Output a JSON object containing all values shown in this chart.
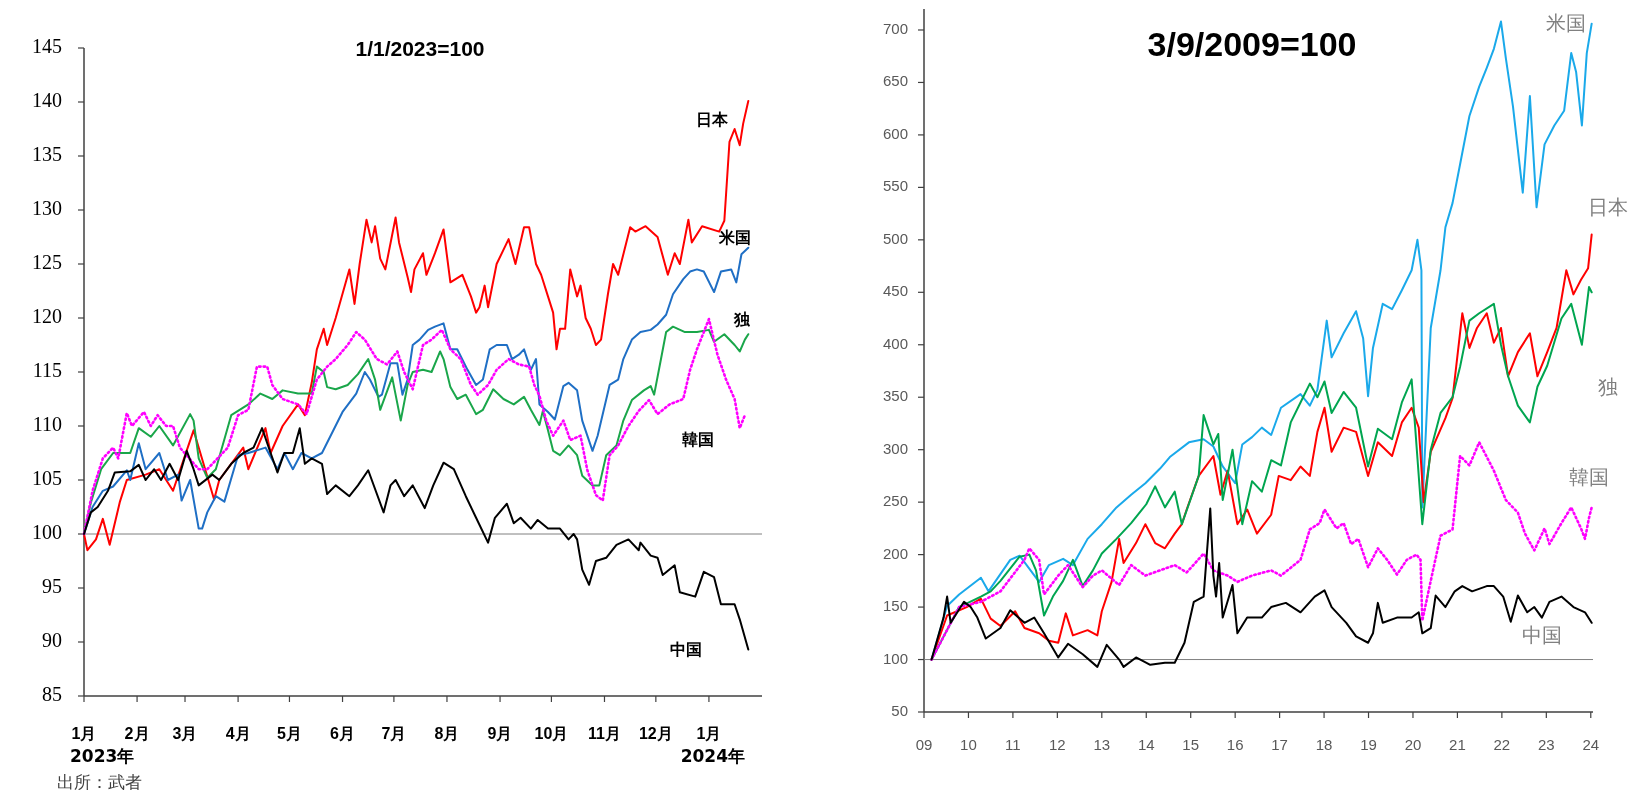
{
  "chart_data": [
    {
      "type": "line",
      "title": "1/1/2023=100",
      "xlim": [
        "2023-01-01",
        "2024-02-01"
      ],
      "ylim": [
        85,
        145
      ],
      "yticks": [
        85,
        90,
        95,
        100,
        105,
        110,
        115,
        120,
        125,
        130,
        135,
        140,
        145
      ],
      "xticks": [
        {
          "value": "2023-01-01",
          "label": "1月"
        },
        {
          "value": "2023-02-01",
          "label": "2月"
        },
        {
          "value": "2023-03-01",
          "label": "3月"
        },
        {
          "value": "2023-04-01",
          "label": "4月"
        },
        {
          "value": "2023-05-01",
          "label": "5月"
        },
        {
          "value": "2023-06-01",
          "label": "6月"
        },
        {
          "value": "2023-07-01",
          "label": "7月"
        },
        {
          "value": "2023-08-01",
          "label": "8月"
        },
        {
          "value": "2023-09-01",
          "label": "9月"
        },
        {
          "value": "2023-10-01",
          "label": "10月"
        },
        {
          "value": "2023-11-01",
          "label": "11月"
        },
        {
          "value": "2023-12-01",
          "label": "12月"
        },
        {
          "value": "2024-01-01",
          "label": "1月"
        }
      ],
      "grid": false,
      "legend": false,
      "ref_lines": [
        {
          "axis": "y",
          "value": 100,
          "color": "#808080"
        }
      ],
      "annotations": [
        "2023年",
        "2024年",
        "出所：武者"
      ],
      "series": [
        {
          "name": "日本",
          "color": "#ff0000",
          "x": [
            "2023-01-01",
            "2023-01-03",
            "2023-01-08",
            "2023-01-12",
            "2023-01-16",
            "2023-01-22",
            "2023-01-26",
            "2023-02-06",
            "2023-02-14",
            "2023-02-22",
            "2023-03-06",
            "2023-03-18",
            "2023-03-21",
            "2023-04-04",
            "2023-04-07",
            "2023-04-17",
            "2023-04-20",
            "2023-04-27",
            "2023-05-06",
            "2023-05-10",
            "2023-05-14",
            "2023-05-17",
            "2023-05-21",
            "2023-05-23",
            "2023-05-28",
            "2023-06-05",
            "2023-06-08",
            "2023-06-11",
            "2023-06-15",
            "2023-06-18",
            "2023-06-20",
            "2023-06-23",
            "2023-06-26",
            "2023-07-02",
            "2023-07-04",
            "2023-07-09",
            "2023-07-11",
            "2023-07-13",
            "2023-07-18",
            "2023-07-20",
            "2023-07-25",
            "2023-07-30",
            "2023-08-03",
            "2023-08-10",
            "2023-08-15",
            "2023-08-18",
            "2023-08-20",
            "2023-08-23",
            "2023-08-25",
            "2023-08-30",
            "2023-09-06",
            "2023-09-10",
            "2023-09-15",
            "2023-09-18",
            "2023-09-22",
            "2023-09-25",
            "2023-09-29",
            "2023-10-02",
            "2023-10-04",
            "2023-10-06",
            "2023-10-09",
            "2023-10-12",
            "2023-10-16",
            "2023-10-18",
            "2023-10-21",
            "2023-10-24",
            "2023-10-27",
            "2023-10-30",
            "2023-11-03",
            "2023-11-06",
            "2023-11-09",
            "2023-11-16",
            "2023-11-19",
            "2023-11-25",
            "2023-12-02",
            "2023-12-08",
            "2023-12-12",
            "2023-12-15",
            "2023-12-20",
            "2023-12-22",
            "2023-12-28",
            "2024-01-07",
            "2024-01-10",
            "2024-01-13",
            "2024-01-16",
            "2024-01-19",
            "2024-01-21",
            "2024-01-24"
          ],
          "values": [
            100,
            98.5,
            99.5,
            101.4,
            99,
            103,
            105,
            105.5,
            106,
            104,
            109.6,
            103.2,
            105,
            108,
            106,
            109.8,
            107.5,
            110,
            112,
            111,
            114,
            117.1,
            119,
            117.5,
            120,
            124.5,
            121.3,
            125,
            129.1,
            127,
            128.5,
            125.5,
            124.5,
            129.3,
            127,
            123.8,
            122.4,
            124.5,
            126,
            124,
            126,
            128.2,
            123.3,
            124,
            122,
            120.5,
            121,
            123,
            121,
            125,
            127.3,
            125,
            128.4,
            128.4,
            125,
            124,
            122,
            120.5,
            117.1,
            119,
            119,
            124.5,
            122,
            123,
            120,
            119,
            117.5,
            118,
            122.2,
            125,
            124,
            128.4,
            128,
            128.5,
            127.5,
            124,
            126,
            125,
            129.1,
            127,
            128.5,
            128,
            129,
            136.3,
            137.5,
            136,
            138,
            140.1
          ]
        },
        {
          "name": "米国",
          "color": "#1f6fc5",
          "x": [
            "2023-01-01",
            "2023-01-06",
            "2023-01-12",
            "2023-01-18",
            "2023-01-26",
            "2023-01-28",
            "2023-02-02",
            "2023-02-06",
            "2023-02-14",
            "2023-02-19",
            "2023-02-25",
            "2023-02-27",
            "2023-03-04",
            "2023-03-09",
            "2023-03-11",
            "2023-03-14",
            "2023-03-19",
            "2023-03-24",
            "2023-04-01",
            "2023-04-07",
            "2023-04-17",
            "2023-04-24",
            "2023-04-28",
            "2023-05-03",
            "2023-05-08",
            "2023-05-14",
            "2023-05-20",
            "2023-06-01",
            "2023-06-09",
            "2023-06-14",
            "2023-06-17",
            "2023-06-22",
            "2023-06-24",
            "2023-06-29",
            "2023-07-03",
            "2023-07-06",
            "2023-07-09",
            "2023-07-12",
            "2023-07-16",
            "2023-07-21",
            "2023-07-25",
            "2023-07-30",
            "2023-08-03",
            "2023-08-07",
            "2023-08-13",
            "2023-08-18",
            "2023-08-22",
            "2023-08-26",
            "2023-08-30",
            "2023-09-05",
            "2023-09-08",
            "2023-09-12",
            "2023-09-15",
            "2023-09-19",
            "2023-09-22",
            "2023-09-24",
            "2023-09-29",
            "2023-10-03",
            "2023-10-08",
            "2023-10-11",
            "2023-10-16",
            "2023-10-19",
            "2023-10-25",
            "2023-10-28",
            "2023-11-04",
            "2023-11-09",
            "2023-11-12",
            "2023-11-17",
            "2023-11-22",
            "2023-11-28",
            "2023-12-02",
            "2023-12-07",
            "2023-12-11",
            "2023-12-17",
            "2023-12-21",
            "2023-12-25",
            "2023-12-29",
            "2024-01-04",
            "2024-01-08",
            "2024-01-14",
            "2024-01-17",
            "2024-01-20",
            "2024-01-24"
          ],
          "values": [
            100,
            102.5,
            104,
            104.4,
            105.9,
            105,
            108.4,
            106,
            107.5,
            105,
            105.5,
            103.1,
            105,
            100.5,
            100.5,
            102,
            103.5,
            103,
            107.3,
            107.5,
            108,
            106,
            107.5,
            106,
            107.5,
            107,
            107.5,
            111.3,
            113,
            115,
            114.3,
            112.7,
            112.9,
            115.8,
            115.8,
            112.9,
            114.3,
            117.5,
            118,
            118.9,
            119.2,
            119.5,
            117.1,
            117.1,
            115.2,
            113.8,
            114.3,
            117.1,
            117.5,
            117.5,
            116.2,
            116.6,
            117.1,
            115.2,
            116.2,
            112,
            111.3,
            110.6,
            113.7,
            114,
            113.3,
            110.5,
            107.7,
            109.1,
            113.8,
            114.3,
            116.2,
            118,
            118.7,
            118.9,
            119.4,
            120.3,
            122.2,
            123.6,
            124.3,
            124.5,
            124.3,
            122.4,
            124.3,
            124.5,
            123.3,
            125.9,
            126.5
          ]
        },
        {
          "name": "独",
          "color": "#1aa64a",
          "x": [
            "2023-01-01",
            "2023-01-05",
            "2023-01-11",
            "2023-01-18",
            "2023-01-28",
            "2023-02-02",
            "2023-02-09",
            "2023-02-14",
            "2023-02-22",
            "2023-03-04",
            "2023-03-06",
            "2023-03-09",
            "2023-03-14",
            "2023-03-19",
            "2023-03-28",
            "2023-04-07",
            "2023-04-14",
            "2023-04-21",
            "2023-04-27",
            "2023-05-06",
            "2023-05-14",
            "2023-05-17",
            "2023-05-21",
            "2023-05-23",
            "2023-05-28",
            "2023-06-04",
            "2023-06-10",
            "2023-06-16",
            "2023-06-20",
            "2023-06-23",
            "2023-06-30",
            "2023-07-05",
            "2023-07-09",
            "2023-07-12",
            "2023-07-18",
            "2023-07-23",
            "2023-07-28",
            "2023-07-30",
            "2023-08-03",
            "2023-08-07",
            "2023-08-12",
            "2023-08-18",
            "2023-08-22",
            "2023-08-28",
            "2023-09-03",
            "2023-09-09",
            "2023-09-15",
            "2023-09-19",
            "2023-09-24",
            "2023-09-26",
            "2023-09-29",
            "2023-10-02",
            "2023-10-06",
            "2023-10-11",
            "2023-10-16",
            "2023-10-19",
            "2023-10-25",
            "2023-10-29",
            "2023-11-02",
            "2023-11-08",
            "2023-11-12",
            "2023-11-17",
            "2023-11-24",
            "2023-11-28",
            "2023-11-30",
            "2023-12-04",
            "2023-12-07",
            "2023-12-11",
            "2023-12-18",
            "2023-12-25",
            "2024-01-01",
            "2024-01-04",
            "2024-01-10",
            "2024-01-16",
            "2024-01-19",
            "2024-01-22",
            "2024-01-24"
          ],
          "values": [
            100,
            102.9,
            106,
            107.5,
            107.5,
            109.8,
            109,
            110,
            108.2,
            111.1,
            110.5,
            107,
            105.2,
            106,
            111,
            112,
            113,
            112.5,
            113.3,
            113,
            113,
            115.5,
            115,
            113.6,
            113.4,
            113.8,
            114.8,
            116.2,
            114.3,
            111.5,
            114.5,
            110.5,
            113.8,
            115,
            115.2,
            115,
            116.9,
            116.2,
            113.6,
            112.5,
            112.9,
            111.1,
            111.5,
            113.4,
            112.5,
            112,
            112.7,
            111.5,
            110.1,
            111.4,
            109.6,
            107.7,
            107.3,
            108.2,
            107.3,
            105.4,
            104.5,
            104.5,
            107.3,
            108.2,
            110.5,
            112.4,
            113.3,
            113.7,
            112.9,
            116.2,
            118.7,
            119.2,
            118.7,
            118.7,
            118.9,
            117.8,
            118.5,
            117.5,
            116.9,
            118,
            118.5
          ]
        },
        {
          "name": "韓国",
          "color": "#ff00ff",
          "line_style": "dotted",
          "x": [
            "2023-01-01",
            "2023-01-06",
            "2023-01-12",
            "2023-01-18",
            "2023-01-21",
            "2023-01-26",
            "2023-01-29",
            "2023-02-05",
            "2023-02-09",
            "2023-02-13",
            "2023-02-18",
            "2023-02-22",
            "2023-02-26",
            "2023-03-09",
            "2023-03-14",
            "2023-03-26",
            "2023-04-01",
            "2023-04-07",
            "2023-04-12",
            "2023-04-18",
            "2023-04-21",
            "2023-04-27",
            "2023-05-06",
            "2023-05-11",
            "2023-05-17",
            "2023-05-23",
            "2023-05-28",
            "2023-06-04",
            "2023-06-09",
            "2023-06-14",
            "2023-06-21",
            "2023-06-27",
            "2023-07-03",
            "2023-07-07",
            "2023-07-12",
            "2023-07-18",
            "2023-07-23",
            "2023-07-29",
            "2023-08-03",
            "2023-08-09",
            "2023-08-15",
            "2023-08-19",
            "2023-08-25",
            "2023-08-30",
            "2023-09-06",
            "2023-09-12",
            "2023-09-18",
            "2023-09-21",
            "2023-09-24",
            "2023-09-28",
            "2023-10-02",
            "2023-10-08",
            "2023-10-12",
            "2023-10-18",
            "2023-10-22",
            "2023-10-27",
            "2023-10-31",
            "2023-11-04",
            "2023-11-09",
            "2023-11-15",
            "2023-11-21",
            "2023-11-27",
            "2023-12-02",
            "2023-12-09",
            "2023-12-17",
            "2023-12-21",
            "2023-12-25",
            "2024-01-01",
            "2024-01-06",
            "2024-01-11",
            "2024-01-16",
            "2024-01-19",
            "2024-01-22"
          ],
          "values": [
            100,
            104,
            107,
            108,
            107,
            111.2,
            110,
            111.3,
            110,
            111,
            110,
            110,
            108,
            106,
            106,
            108,
            111,
            111.5,
            115.5,
            115.5,
            113.8,
            112.5,
            112,
            111.1,
            114.3,
            115.5,
            116.2,
            117.5,
            118.7,
            118,
            116.2,
            115.7,
            116.9,
            115,
            113.4,
            117.5,
            118,
            118.9,
            117.1,
            116.2,
            113.8,
            112.9,
            113.8,
            115.2,
            116.2,
            115.7,
            115.5,
            113.8,
            112.8,
            110.5,
            109.1,
            110.5,
            108.7,
            109.1,
            105.9,
            103.6,
            103.1,
            107.3,
            108.2,
            110,
            111.4,
            112.4,
            111.1,
            112,
            112.5,
            115.2,
            117.1,
            119.9,
            116.6,
            114.3,
            112.5,
            109.8,
            111
          ]
        },
        {
          "name": "中国",
          "color": "#000000",
          "x": [
            "2023-01-01",
            "2023-01-05",
            "2023-01-09",
            "2023-01-15",
            "2023-01-19",
            "2023-01-28",
            "2023-02-02",
            "2023-02-06",
            "2023-02-11",
            "2023-02-15",
            "2023-02-20",
            "2023-02-25",
            "2023-03-02",
            "2023-03-06",
            "2023-03-09",
            "2023-03-17",
            "2023-03-21",
            "2023-03-28",
            "2023-04-04",
            "2023-04-10",
            "2023-04-15",
            "2023-04-20",
            "2023-04-24",
            "2023-04-28",
            "2023-05-03",
            "2023-05-07",
            "2023-05-10",
            "2023-05-14",
            "2023-05-20",
            "2023-05-23",
            "2023-05-28",
            "2023-06-05",
            "2023-06-10",
            "2023-06-16",
            "2023-06-25",
            "2023-06-29",
            "2023-07-02",
            "2023-07-07",
            "2023-07-12",
            "2023-07-19",
            "2023-07-24",
            "2023-07-30",
            "2023-08-05",
            "2023-08-12",
            "2023-08-18",
            "2023-08-25",
            "2023-08-29",
            "2023-09-05",
            "2023-09-09",
            "2023-09-13",
            "2023-09-19",
            "2023-09-23",
            "2023-09-29",
            "2023-10-06",
            "2023-10-11",
            "2023-10-14",
            "2023-10-16",
            "2023-10-19",
            "2023-10-23",
            "2023-10-27",
            "2023-11-02",
            "2023-11-08",
            "2023-11-15",
            "2023-11-21",
            "2023-11-22",
            "2023-11-28",
            "2023-12-02",
            "2023-12-05",
            "2023-12-12",
            "2023-12-15",
            "2023-12-24",
            "2023-12-29",
            "2024-01-04",
            "2024-01-08",
            "2024-01-16",
            "2024-01-19",
            "2024-01-24"
          ],
          "values": [
            100,
            102,
            102.5,
            104,
            105.7,
            105.8,
            106.4,
            105,
            106,
            105,
            106.5,
            105,
            107.7,
            106,
            104.5,
            105.5,
            105,
            106.5,
            107.5,
            108,
            109.8,
            107.5,
            105.7,
            107.5,
            107.5,
            109.8,
            106.5,
            107,
            106.5,
            103.7,
            104.5,
            103.5,
            104.5,
            105.9,
            102,
            104.5,
            105,
            103.5,
            104.5,
            102.4,
            104.5,
            106.6,
            106,
            103.5,
            101.5,
            99.2,
            101.5,
            102.8,
            101,
            101.5,
            100.5,
            101.3,
            100.5,
            100.5,
            99.5,
            100,
            99.5,
            96.7,
            95.3,
            97.5,
            97.8,
            99,
            99.5,
            98.5,
            99.2,
            98,
            97.8,
            96.2,
            97.1,
            94.6,
            94.2,
            96.5,
            96,
            93.5,
            93.5,
            92.1,
            89.3
          ]
        }
      ]
    },
    {
      "type": "line",
      "title": "3/9/2009=100",
      "xlim": [
        2009,
        2024.05
      ],
      "ylim": [
        50,
        720
      ],
      "yticks": [
        50,
        100,
        150,
        200,
        250,
        300,
        350,
        400,
        450,
        500,
        550,
        600,
        650,
        700
      ],
      "xticks": [
        {
          "value": 2009,
          "label": "09"
        },
        {
          "value": 2010,
          "label": "10"
        },
        {
          "value": 2011,
          "label": "11"
        },
        {
          "value": 2012,
          "label": "12"
        },
        {
          "value": 2013,
          "label": "13"
        },
        {
          "value": 2014,
          "label": "14"
        },
        {
          "value": 2015,
          "label": "15"
        },
        {
          "value": 2016,
          "label": "16"
        },
        {
          "value": 2017,
          "label": "17"
        },
        {
          "value": 2018,
          "label": "18"
        },
        {
          "value": 2019,
          "label": "19"
        },
        {
          "value": 2020,
          "label": "20"
        },
        {
          "value": 2021,
          "label": "21"
        },
        {
          "value": 2022,
          "label": "22"
        },
        {
          "value": 2023,
          "label": "23"
        },
        {
          "value": 2024,
          "label": "24"
        }
      ],
      "grid": false,
      "legend": false,
      "ref_lines": [
        {
          "axis": "y",
          "value": 100,
          "color": "#808080"
        }
      ],
      "series": [
        {
          "name": "米国",
          "color": "#1aa9ea",
          "x": [
            2009.17,
            2009.52,
            2009.79,
            2010.28,
            2010.45,
            2010.94,
            2011.15,
            2011.59,
            2011.81,
            2012.13,
            2012.35,
            2012.68,
            2013.0,
            2013.33,
            2013.66,
            2013.98,
            2014.31,
            2014.53,
            2014.96,
            2015.29,
            2015.51,
            2015.72,
            2016.0,
            2016.16,
            2016.38,
            2016.6,
            2016.81,
            2017.03,
            2017.47,
            2017.68,
            2017.85,
            2018.06,
            2018.17,
            2018.44,
            2018.72,
            2018.88,
            2018.99,
            2019.1,
            2019.32,
            2019.53,
            2019.75,
            2019.97,
            2020.1,
            2020.19,
            2020.21,
            2020.4,
            2020.62,
            2020.73,
            2020.89,
            2021.06,
            2021.27,
            2021.49,
            2021.66,
            2021.82,
            2021.98,
            2022.09,
            2022.25,
            2022.47,
            2022.63,
            2022.78,
            2022.96,
            2023.18,
            2023.4,
            2023.56,
            2023.67,
            2023.8,
            2023.91,
            2024.02
          ],
          "values": [
            100,
            151,
            162,
            178,
            165,
            195,
            199,
            174,
            190,
            196,
            190,
            215,
            229,
            245,
            257,
            268,
            282,
            293,
            307,
            310,
            303,
            284,
            268,
            305,
            312,
            321,
            314,
            340,
            353,
            342,
            357,
            423,
            388,
            411,
            432,
            406,
            351,
            397,
            439,
            434,
            452,
            471,
            500,
            471,
            245,
            416,
            471,
            512,
            535,
            572,
            618,
            646,
            664,
            682,
            708,
            673,
            627,
            545,
            637,
            531,
            591,
            609,
            623,
            678,
            660,
            609,
            678,
            706
          ]
        },
        {
          "name": "日本",
          "color": "#ff0000",
          "x": [
            2009.17,
            2009.52,
            2009.96,
            2010.28,
            2010.5,
            2010.72,
            2011.05,
            2011.26,
            2011.59,
            2011.81,
            2012.02,
            2012.19,
            2012.35,
            2012.68,
            2012.9,
            2013.0,
            2013.22,
            2013.39,
            2013.49,
            2013.77,
            2013.98,
            2014.2,
            2014.42,
            2014.64,
            2014.8,
            2014.91,
            2015.18,
            2015.51,
            2015.67,
            2015.83,
            2016.05,
            2016.27,
            2016.49,
            2016.81,
            2016.98,
            2017.25,
            2017.47,
            2017.68,
            2017.85,
            2018.01,
            2018.17,
            2018.44,
            2018.72,
            2018.99,
            2019.21,
            2019.53,
            2019.75,
            2019.97,
            2020.13,
            2020.24,
            2020.4,
            2020.73,
            2020.89,
            2021.11,
            2021.27,
            2021.44,
            2021.66,
            2021.82,
            2021.98,
            2022.14,
            2022.36,
            2022.63,
            2022.8,
            2023.02,
            2023.23,
            2023.45,
            2023.61,
            2023.78,
            2023.94,
            2024.02
          ],
          "values": [
            100,
            142,
            150,
            158,
            139,
            132,
            146,
            130,
            125,
            118,
            116,
            144,
            123,
            128,
            123,
            146,
            174,
            215,
            192,
            211,
            229,
            211,
            206,
            220,
            229,
            243,
            275,
            294,
            257,
            280,
            229,
            243,
            220,
            238,
            275,
            271,
            284,
            275,
            317,
            340,
            298,
            321,
            317,
            275,
            307,
            294,
            326,
            340,
            321,
            250,
            298,
            330,
            349,
            430,
            397,
            416,
            430,
            402,
            416,
            370,
            393,
            411,
            370,
            393,
            416,
            471,
            448,
            462,
            473,
            505
          ]
        },
        {
          "name": "独",
          "color": "#00a550",
          "x": [
            2009.17,
            2009.79,
            2010.28,
            2010.5,
            2010.72,
            2011.15,
            2011.37,
            2011.52,
            2011.7,
            2011.9,
            2012.13,
            2012.35,
            2012.57,
            2012.8,
            2013.0,
            2013.33,
            2013.66,
            2014.0,
            2014.2,
            2014.42,
            2014.64,
            2014.8,
            2015.18,
            2015.29,
            2015.51,
            2015.62,
            2015.72,
            2015.94,
            2016.16,
            2016.38,
            2016.6,
            2016.81,
            2017.03,
            2017.25,
            2017.47,
            2017.68,
            2017.85,
            2018.01,
            2018.17,
            2018.44,
            2018.72,
            2018.99,
            2019.21,
            2019.53,
            2019.75,
            2019.97,
            2020.21,
            2020.4,
            2020.62,
            2020.89,
            2021.06,
            2021.27,
            2021.49,
            2021.82,
            2021.98,
            2022.14,
            2022.36,
            2022.63,
            2022.8,
            2023.02,
            2023.34,
            2023.56,
            2023.8,
            2023.96,
            2024.02
          ],
          "values": [
            100,
            150,
            160,
            165,
            175,
            198,
            200,
            185,
            142,
            160,
            175,
            195,
            170,
            185,
            201,
            215,
            230,
            248,
            265,
            245,
            260,
            229,
            275,
            333,
            305,
            315,
            252,
            300,
            229,
            270,
            260,
            290,
            285,
            326,
            345,
            363,
            350,
            365,
            335,
            355,
            340,
            284,
            320,
            310,
            345,
            367,
            229,
            300,
            335,
            350,
            379,
            423,
            430,
            439,
            400,
            370,
            342,
            326,
            360,
            380,
            425,
            439,
            400,
            455,
            450
          ]
        },
        {
          "name": "韓国",
          "color": "#ff00ff",
          "line_style": "dotted",
          "x": [
            2009.17,
            2009.79,
            2010.28,
            2010.72,
            2011.26,
            2011.37,
            2011.59,
            2011.7,
            2012.02,
            2012.24,
            2012.57,
            2012.8,
            2013.0,
            2013.39,
            2013.66,
            2013.98,
            2014.31,
            2014.64,
            2014.91,
            2015.29,
            2015.51,
            2015.83,
            2016.05,
            2016.38,
            2016.81,
            2017.03,
            2017.47,
            2017.68,
            2017.9,
            2018.01,
            2018.28,
            2018.44,
            2018.61,
            2018.77,
            2018.99,
            2019.21,
            2019.42,
            2019.64,
            2019.86,
            2020.08,
            2020.17,
            2020.21,
            2020.4,
            2020.62,
            2020.89,
            2021.06,
            2021.27,
            2021.49,
            2021.82,
            2022.09,
            2022.36,
            2022.52,
            2022.73,
            2022.96,
            2023.07,
            2023.34,
            2023.56,
            2023.78,
            2023.87,
            2023.96,
            2024.02
          ],
          "values": [
            100,
            150,
            155,
            165,
            195,
            206,
            195,
            162,
            180,
            190,
            169,
            180,
            185,
            171,
            190,
            180,
            185,
            190,
            183,
            201,
            185,
            180,
            174,
            180,
            185,
            180,
            195,
            224,
            230,
            243,
            225,
            230,
            210,
            215,
            188,
            206,
            195,
            181,
            195,
            200,
            195,
            137,
            175,
            218,
            224,
            294,
            285,
            307,
            280,
            252,
            240,
            220,
            204,
            225,
            210,
            230,
            245,
            225,
            215,
            235,
            245
          ]
        },
        {
          "name": "中国",
          "color": "#000000",
          "x": [
            2009.17,
            2009.44,
            2009.52,
            2009.6,
            2009.9,
            2010.05,
            2010.2,
            2010.39,
            2010.72,
            2010.94,
            2011.26,
            2011.48,
            2011.7,
            2012.02,
            2012.24,
            2012.57,
            2012.9,
            2013.11,
            2013.39,
            2013.49,
            2013.77,
            2014.09,
            2014.42,
            2014.64,
            2014.86,
            2015.07,
            2015.29,
            2015.44,
            2015.51,
            2015.57,
            2015.64,
            2015.72,
            2015.94,
            2016.05,
            2016.27,
            2016.6,
            2016.81,
            2017.14,
            2017.47,
            2017.79,
            2018.01,
            2018.17,
            2018.5,
            2018.72,
            2018.99,
            2019.1,
            2019.21,
            2019.32,
            2019.64,
            2019.97,
            2020.13,
            2020.21,
            2020.4,
            2020.51,
            2020.73,
            2020.94,
            2021.11,
            2021.33,
            2021.66,
            2021.82,
            2022.03,
            2022.2,
            2022.36,
            2022.57,
            2022.73,
            2022.9,
            2023.07,
            2023.34,
            2023.61,
            2023.87,
            2024.02
          ],
          "values": [
            100,
            140,
            160,
            135,
            155,
            150,
            140,
            120,
            130,
            147,
            135,
            140,
            125,
            102,
            115,
            105,
            93,
            114,
            100,
            93,
            102,
            95,
            97,
            97,
            116,
            155,
            160,
            244,
            180,
            160,
            192,
            140,
            171,
            125,
            140,
            140,
            150,
            154,
            145,
            160,
            166,
            150,
            135,
            122,
            116,
            125,
            154,
            135,
            140,
            140,
            145,
            125,
            130,
            161,
            150,
            165,
            170,
            165,
            170,
            170,
            160,
            136,
            161,
            145,
            150,
            140,
            155,
            160,
            150,
            145,
            135
          ]
        }
      ]
    }
  ]
}
